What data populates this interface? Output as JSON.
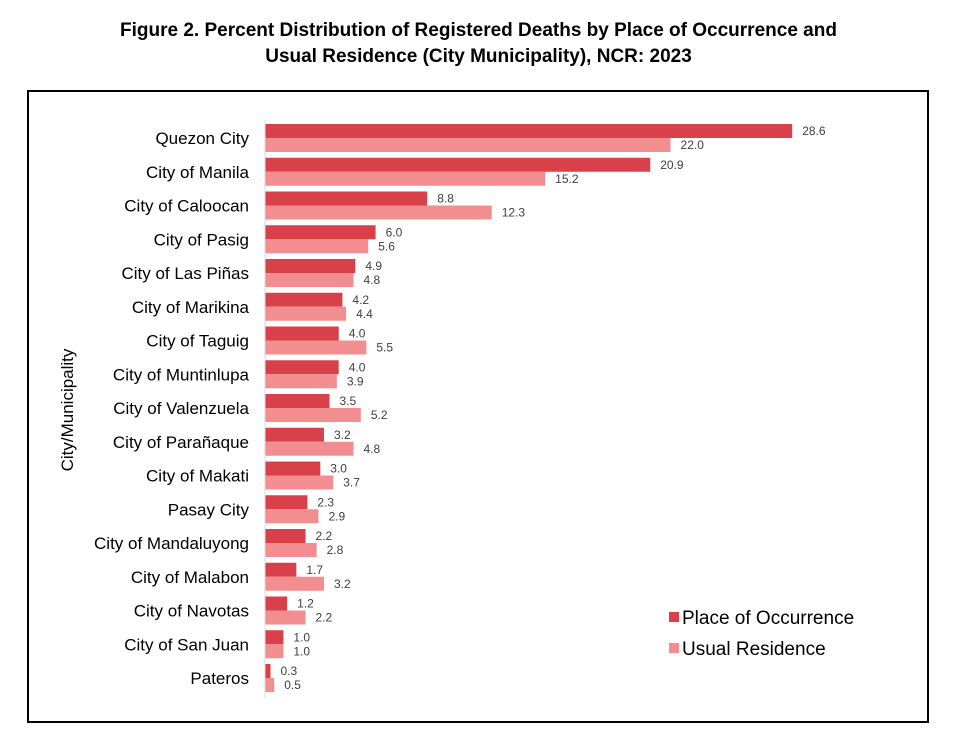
{
  "figure": {
    "title_line1": "Figure 2. Percent Distribution of Registered Deaths by Place of Occurrence and",
    "title_line2": "Usual Residence (City Municipality), NCR: 2023"
  },
  "chart_data": {
    "type": "bar",
    "orientation": "horizontal",
    "title": "Figure 2. Percent Distribution of Registered Deaths by Place of Occurrence and Usual Residence (City Municipality), NCR: 2023",
    "xlabel": "",
    "ylabel": "City/Municipality",
    "categories": [
      "Quezon City",
      "City of Manila",
      "City of Caloocan",
      "City of Pasig",
      "City of Las Piñas",
      "City of Marikina",
      "City of Taguig",
      "City of Muntinlupa",
      "City of Valenzuela",
      "City of Parañaque",
      "City of Makati",
      "Pasay City",
      "City of Mandaluyong",
      "City of Malabon",
      "City of Navotas",
      "City of San Juan",
      "Pateros"
    ],
    "series": [
      {
        "name": "Place of Occurrence",
        "color": "#d9414a",
        "values": [
          28.6,
          20.9,
          8.8,
          6.0,
          4.9,
          4.2,
          4.0,
          4.0,
          3.5,
          3.2,
          3.0,
          2.3,
          2.2,
          1.7,
          1.2,
          1.0,
          0.3
        ],
        "labels": [
          "28.6",
          "20.9",
          "8.8",
          "6.0",
          "4.9",
          "4.2",
          "4.0",
          "4.0",
          "3.5",
          "3.2",
          "3.0",
          "2.3",
          "2.2",
          "1.7",
          "1.2",
          "1.0",
          "0.3"
        ]
      },
      {
        "name": "Usual Residence",
        "color": "#f28e8f",
        "values": [
          22.0,
          15.2,
          12.3,
          5.6,
          4.8,
          4.4,
          5.5,
          3.9,
          5.2,
          4.8,
          3.7,
          2.9,
          2.8,
          3.2,
          2.2,
          1.0,
          0.5
        ],
        "labels": [
          "22.0",
          "15.2",
          "12.3",
          "5.6",
          "4.8",
          "4.4",
          "5.5",
          "3.9",
          "5.2",
          "4.8",
          "3.7",
          "2.9",
          "2.8",
          "3.2",
          "2.2",
          "1.0",
          "0.5"
        ]
      }
    ],
    "xlim": [
      0,
      30
    ],
    "grid": false,
    "legend_position": "bottom-right",
    "data_labels": true
  }
}
